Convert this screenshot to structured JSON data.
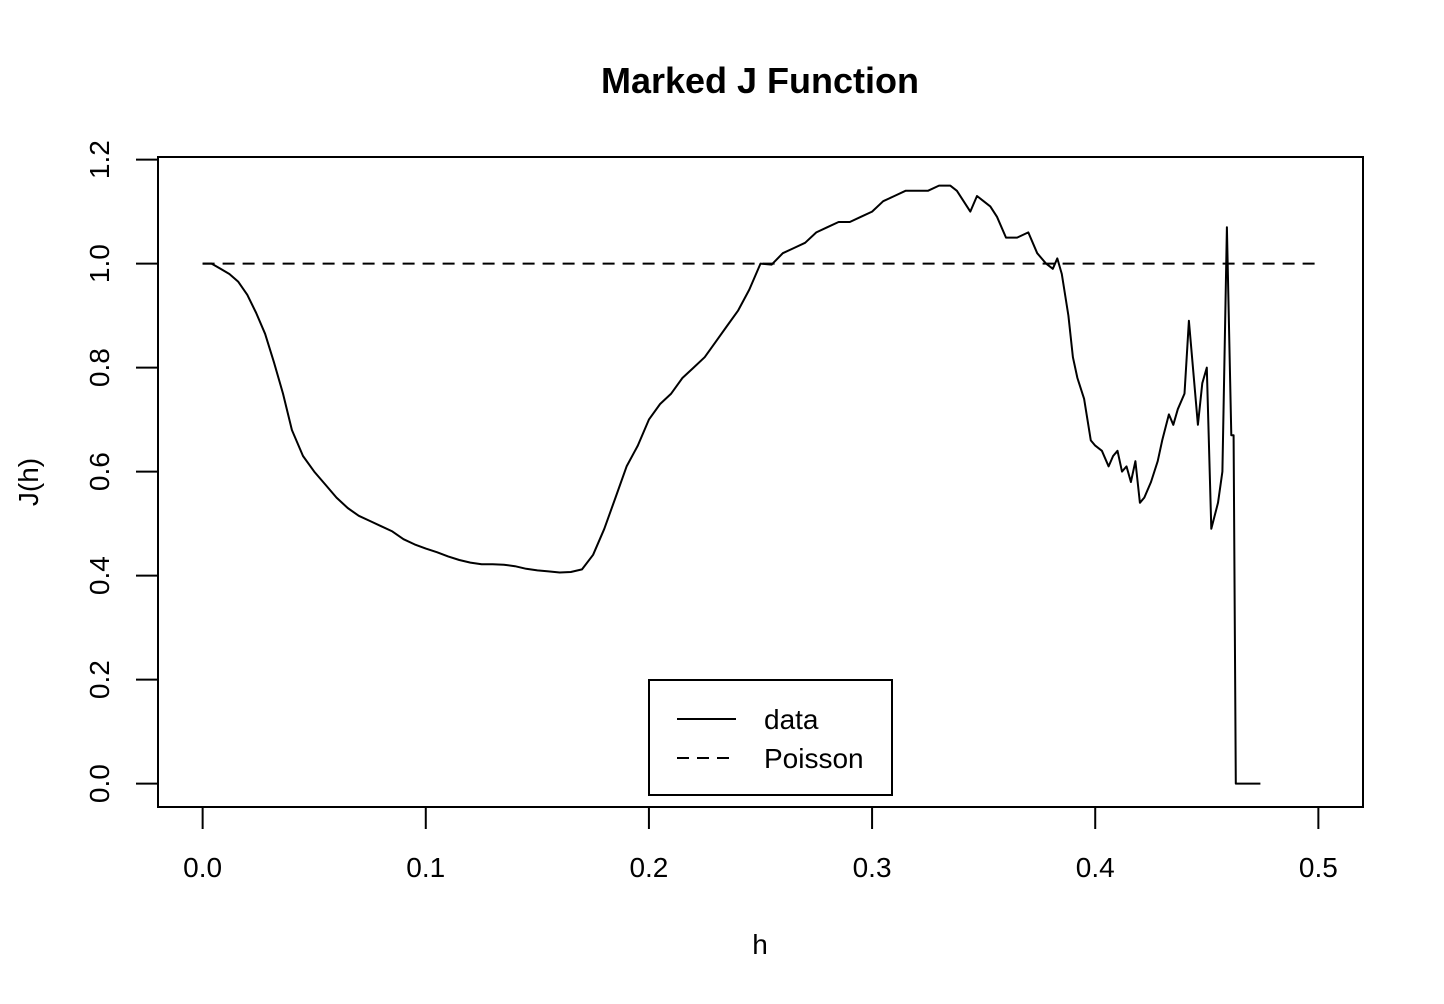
{
  "chart_data": {
    "type": "line",
    "title": "Marked J Function",
    "xlabel": "h",
    "ylabel": "J(h)",
    "xlim": [
      -0.02,
      0.52
    ],
    "ylim": [
      -0.045,
      1.205
    ],
    "x_ticks": [
      0.0,
      0.1,
      0.2,
      0.3,
      0.4,
      0.5
    ],
    "x_tick_labels": [
      "0.0",
      "0.1",
      "0.2",
      "0.3",
      "0.4",
      "0.5"
    ],
    "y_ticks": [
      0.0,
      0.2,
      0.4,
      0.6,
      0.8,
      1.0,
      1.2
    ],
    "y_tick_labels": [
      "0.0",
      "0.2",
      "0.4",
      "0.6",
      "0.8",
      "1.0",
      "1.2"
    ],
    "grid": false,
    "legend": {
      "position": "bottom-center",
      "entries": [
        "data",
        "Poisson"
      ]
    },
    "series": [
      {
        "name": "data",
        "style": "solid",
        "color": "#000000",
        "x": [
          0.0,
          0.004,
          0.008,
          0.012,
          0.016,
          0.02,
          0.024,
          0.028,
          0.032,
          0.036,
          0.04,
          0.045,
          0.05,
          0.055,
          0.06,
          0.065,
          0.07,
          0.075,
          0.08,
          0.085,
          0.09,
          0.095,
          0.1,
          0.105,
          0.11,
          0.115,
          0.12,
          0.125,
          0.13,
          0.135,
          0.14,
          0.145,
          0.15,
          0.155,
          0.16,
          0.165,
          0.17,
          0.175,
          0.18,
          0.185,
          0.19,
          0.195,
          0.2,
          0.205,
          0.21,
          0.215,
          0.22,
          0.225,
          0.23,
          0.235,
          0.24,
          0.245,
          0.25,
          0.255,
          0.26,
          0.265,
          0.27,
          0.275,
          0.28,
          0.285,
          0.29,
          0.295,
          0.3,
          0.305,
          0.31,
          0.315,
          0.32,
          0.325,
          0.33,
          0.335,
          0.338,
          0.341,
          0.344,
          0.347,
          0.35,
          0.353,
          0.356,
          0.36,
          0.365,
          0.37,
          0.374,
          0.378,
          0.381,
          0.383,
          0.385,
          0.388,
          0.39,
          0.392,
          0.395,
          0.398,
          0.4,
          0.403,
          0.406,
          0.408,
          0.41,
          0.412,
          0.414,
          0.416,
          0.418,
          0.42,
          0.422,
          0.425,
          0.428,
          0.43,
          0.433,
          0.435,
          0.437,
          0.44,
          0.442,
          0.444,
          0.446,
          0.448,
          0.45,
          0.452,
          0.455,
          0.457,
          0.459,
          0.461,
          0.462,
          0.463,
          0.468,
          0.474
        ],
        "y": [
          1.0,
          1.0,
          0.99,
          0.98,
          0.965,
          0.94,
          0.905,
          0.865,
          0.81,
          0.75,
          0.68,
          0.63,
          0.6,
          0.575,
          0.55,
          0.53,
          0.515,
          0.505,
          0.495,
          0.485,
          0.47,
          0.46,
          0.452,
          0.445,
          0.437,
          0.43,
          0.425,
          0.422,
          0.422,
          0.421,
          0.418,
          0.413,
          0.41,
          0.408,
          0.406,
          0.407,
          0.412,
          0.44,
          0.49,
          0.55,
          0.61,
          0.65,
          0.7,
          0.73,
          0.75,
          0.78,
          0.8,
          0.82,
          0.85,
          0.88,
          0.91,
          0.95,
          1.0,
          0.998,
          1.02,
          1.03,
          1.04,
          1.06,
          1.07,
          1.08,
          1.08,
          1.09,
          1.1,
          1.12,
          1.13,
          1.14,
          1.14,
          1.14,
          1.15,
          1.15,
          1.14,
          1.12,
          1.1,
          1.13,
          1.12,
          1.11,
          1.09,
          1.05,
          1.05,
          1.06,
          1.02,
          1.0,
          0.99,
          1.01,
          0.98,
          0.9,
          0.82,
          0.78,
          0.74,
          0.66,
          0.65,
          0.64,
          0.61,
          0.63,
          0.64,
          0.6,
          0.61,
          0.58,
          0.62,
          0.54,
          0.55,
          0.58,
          0.62,
          0.66,
          0.71,
          0.69,
          0.72,
          0.75,
          0.89,
          0.79,
          0.69,
          0.77,
          0.8,
          0.49,
          0.54,
          0.6,
          1.07,
          0.67,
          0.67,
          0.0,
          0.0,
          0.0
        ]
      },
      {
        "name": "Poisson",
        "style": "dashed",
        "color": "#000000",
        "x": [
          0.0,
          0.5
        ],
        "y": [
          1.0,
          1.0
        ]
      }
    ]
  }
}
